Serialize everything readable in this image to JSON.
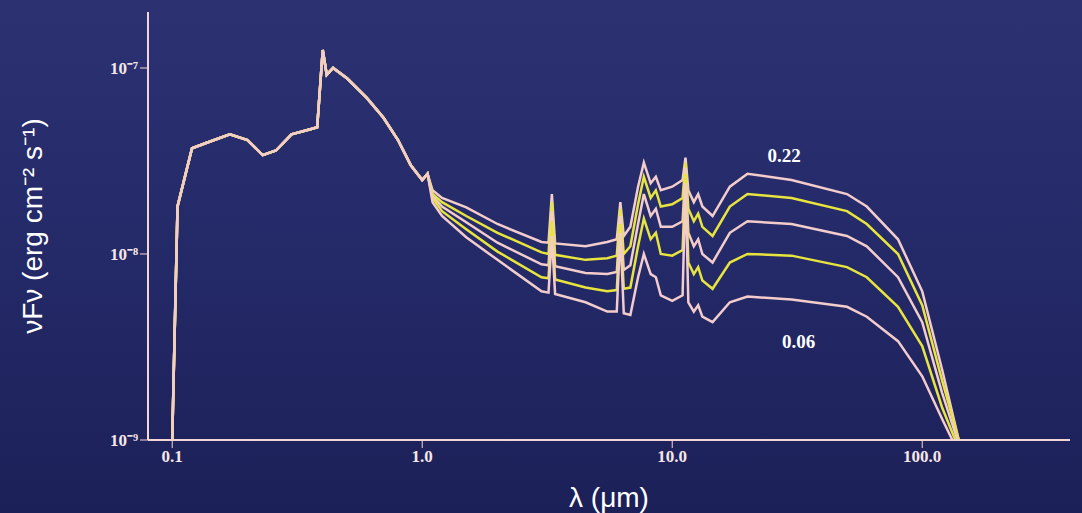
{
  "chart_data": {
    "type": "line",
    "log": true,
    "grid": false,
    "x_label": "λ (μm)",
    "y_label": "νFν (erg cm⁻² s⁻¹)",
    "xlim": [
      0.08,
      390
    ],
    "xticks": [
      0.1,
      {
        "value": 1,
        "label": "1.0"
      },
      {
        "value": 10,
        "label": "10.0"
      },
      {
        "value": 100,
        "label": "100.0"
      }
    ],
    "ylim": [
      1e-09,
      2e-07
    ],
    "yticks": [
      {
        "value": 1e-09,
        "label": "10⁻⁹"
      },
      {
        "value": 1e-08,
        "label": "10⁻⁸"
      },
      {
        "value": 1e-07,
        "label": "10⁻⁷"
      }
    ],
    "x": [
      0.1,
      0.105,
      0.12,
      0.14,
      0.17,
      0.2,
      0.23,
      0.26,
      0.3,
      0.36,
      0.38,
      0.4,
      0.415,
      0.44,
      0.5,
      0.6,
      0.7,
      0.8,
      0.9,
      1.0,
      1.05,
      1.1,
      1.2,
      1.5,
      2.0,
      3.0,
      3.2,
      3.3,
      3.4,
      4.5,
      5.5,
      6.0,
      6.2,
      6.4,
      6.8,
      7.3,
      7.7,
      8.2,
      8.6,
      9.0,
      10.0,
      11.0,
      11.3,
      11.6,
      12.2,
      12.7,
      13.2,
      14.5,
      17,
      20,
      30,
      50,
      60,
      80,
      100,
      120,
      140
    ],
    "series": [
      {
        "color": "#f3cccc",
        "values": [
          1e-09,
          1.8e-08,
          3.7e-08,
          4e-08,
          4.4e-08,
          4.1e-08,
          3.4e-08,
          3.6e-08,
          4.4e-08,
          4.7e-08,
          4.8e-08,
          1.25e-07,
          9.2e-08,
          1e-07,
          8.8e-08,
          6.9e-08,
          5.4e-08,
          4.1e-08,
          3e-08,
          2.5e-08,
          2.7e-08,
          2.2e-08,
          2e-08,
          1.78e-08,
          1.45e-08,
          1.16e-08,
          1.15e-08,
          2.1e-08,
          1.14e-08,
          1.1e-08,
          1.16e-08,
          1.2e-08,
          1.9e-08,
          1.25e-08,
          1.4e-08,
          2.3e-08,
          3.1e-08,
          2.4e-08,
          2.6e-08,
          2.2e-08,
          2.3e-08,
          2.5e-08,
          3.3e-08,
          2.2e-08,
          1.9e-08,
          2.1e-08,
          1.8e-08,
          1.6e-08,
          2.3e-08,
          2.7e-08,
          2.5e-08,
          2.1e-08,
          1.8e-08,
          1.2e-08,
          6.3e-09,
          2.4e-09,
          1e-09
        ]
      },
      {
        "color": "#e8e43e",
        "values": [
          1e-09,
          1.8e-08,
          3.7e-08,
          4e-08,
          4.4e-08,
          4.1e-08,
          3.4e-08,
          3.6e-08,
          4.4e-08,
          4.7e-08,
          4.8e-08,
          1.25e-07,
          9.2e-08,
          1e-07,
          8.8e-08,
          6.9e-08,
          5.4e-08,
          4.1e-08,
          3e-08,
          2.5e-08,
          2.7e-08,
          2.1e-08,
          1.9e-08,
          1.6e-08,
          1.3e-08,
          1.02e-08,
          1e-08,
          1.9e-08,
          9.9e-09,
          9.3e-09,
          9.5e-09,
          9.8e-09,
          1.75e-08,
          1e-08,
          1.1e-08,
          1.85e-08,
          2.6e-08,
          2e-08,
          2.2e-08,
          1.8e-08,
          1.85e-08,
          2e-08,
          3.1e-08,
          1.75e-08,
          1.5e-08,
          1.65e-08,
          1.4e-08,
          1.25e-08,
          1.8e-08,
          2.1e-08,
          2e-08,
          1.7e-08,
          1.45e-08,
          1e-08,
          5.3e-09,
          2.1e-09,
          1e-09
        ]
      },
      {
        "color": "#f3cccc",
        "values": [
          1e-09,
          1.8e-08,
          3.7e-08,
          4e-08,
          4.4e-08,
          4.1e-08,
          3.4e-08,
          3.6e-08,
          4.4e-08,
          4.7e-08,
          4.8e-08,
          1.25e-07,
          9.2e-08,
          1e-07,
          8.8e-08,
          6.9e-08,
          5.4e-08,
          4.1e-08,
          3e-08,
          2.5e-08,
          2.7e-08,
          2.05e-08,
          1.8e-08,
          1.48e-08,
          1.15e-08,
          8.8e-09,
          8.7e-09,
          1.7e-08,
          8.6e-09,
          7.9e-09,
          7.8e-09,
          8e-09,
          1.6e-08,
          8.2e-09,
          8.7e-09,
          1.45e-08,
          2.1e-08,
          1.6e-08,
          1.75e-08,
          1.4e-08,
          1.4e-08,
          1.5e-08,
          2.9e-08,
          1.3e-08,
          1.1e-08,
          1.2e-08,
          1e-08,
          9e-09,
          1.3e-08,
          1.5e-08,
          1.45e-08,
          1.25e-08,
          1.1e-08,
          7.5e-09,
          4.3e-09,
          1.8e-09,
          9.5e-10
        ]
      },
      {
        "color": "#e8e43e",
        "values": [
          1e-09,
          1.8e-08,
          3.7e-08,
          4e-08,
          4.4e-08,
          4.1e-08,
          3.4e-08,
          3.6e-08,
          4.4e-08,
          4.7e-08,
          4.8e-08,
          1.25e-07,
          9.2e-08,
          1e-07,
          8.8e-08,
          6.9e-08,
          5.4e-08,
          4.1e-08,
          3e-08,
          2.5e-08,
          2.7e-08,
          2e-08,
          1.7e-08,
          1.36e-08,
          1.03e-08,
          7.5e-09,
          7.4e-09,
          1.5e-08,
          7.3e-09,
          6.6e-09,
          6.3e-09,
          6.4e-09,
          1.45e-08,
          6.5e-09,
          6.6e-09,
          1.1e-08,
          1.55e-08,
          1.2e-08,
          1.3e-08,
          1e-08,
          9.8e-09,
          1.05e-08,
          2.7e-08,
          9e-09,
          7.8e-09,
          8.5e-09,
          7.2e-09,
          6.5e-09,
          9e-09,
          1e-08,
          9.8e-09,
          8.5e-09,
          7.5e-09,
          5.2e-09,
          3.2e-09,
          1.5e-09,
          9e-10
        ]
      },
      {
        "color": "#f3cccc",
        "values": [
          1e-09,
          1.8e-08,
          3.7e-08,
          4e-08,
          4.4e-08,
          4.1e-08,
          3.4e-08,
          3.6e-08,
          4.4e-08,
          4.7e-08,
          4.8e-08,
          1.25e-07,
          9.2e-08,
          1e-07,
          8.8e-08,
          6.9e-08,
          5.4e-08,
          4.1e-08,
          3e-08,
          2.5e-08,
          2.7e-08,
          1.9e-08,
          1.6e-08,
          1.23e-08,
          9.3e-09,
          6.3e-09,
          6.2e-09,
          1.25e-08,
          6.1e-09,
          5.5e-09,
          4.9e-09,
          4.9e-09,
          1.3e-08,
          4.8e-09,
          4.7e-09,
          7.5e-09,
          1e-08,
          7.8e-09,
          7.5e-09,
          6e-09,
          5.6e-09,
          6e-09,
          2.4e-08,
          5.5e-09,
          4.9e-09,
          5.3e-09,
          4.6e-09,
          4.3e-09,
          5.5e-09,
          5.9e-09,
          5.7e-09,
          5.2e-09,
          4.6e-09,
          3.4e-09,
          2.2e-09,
          1.3e-09,
          8.5e-10
        ]
      }
    ],
    "annotations": [
      {
        "text": "0.22",
        "x": 28,
        "y": 3.4e-08
      },
      {
        "text": "0.06",
        "x": 32,
        "y": 3.4e-09
      }
    ]
  }
}
